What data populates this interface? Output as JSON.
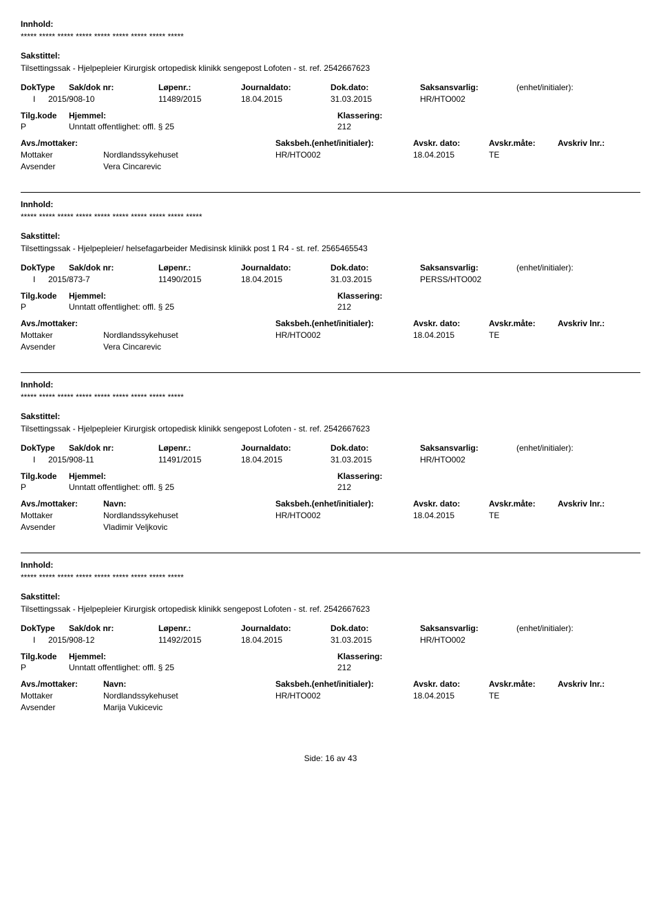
{
  "labels": {
    "innhold": "Innhold:",
    "sakstittel": "Sakstittel:",
    "doktype": "DokType",
    "sakdok": "Sak/dok nr:",
    "lopenr": "Løpenr.:",
    "journaldato": "Journaldato:",
    "dokdato": "Dok.dato:",
    "saksansvarlig": "Saksansvarlig:",
    "enhet": "(enhet/initialer):",
    "tilgkode": "Tilg.kode",
    "hjemmel": "Hjemmel:",
    "klassering": "Klassering:",
    "avsmottaker": "Avs./mottaker:",
    "navn": "Navn:",
    "saksbeh": "Saksbeh.(enhet/initialer):",
    "avskrdato": "Avskr. dato:",
    "avskrmate": "Avskr.måte:",
    "avskrlnr": "Avskriv lnr.:",
    "mottaker": "Mottaker",
    "avsender": "Avsender",
    "side": "Side:",
    "av": "av"
  },
  "common": {
    "hjemmel_text": "Unntatt offentlighet: offl. § 25",
    "klassering_value": "212",
    "tilgkode_value": "P",
    "doktype_value": "I",
    "mottaker_navn": "Nordlandssykehuset",
    "saksbeh_value": "HR/HTO002",
    "avskr_mate": "TE",
    "avskr_dato": "18.04.2015",
    "journaldato": "18.04.2015",
    "dokdato": "31.03.2015"
  },
  "records": [
    {
      "stars": "***** ***** ***** ***** ***** ***** ***** ***** *****",
      "sakstittel": "Tilsettingssak - Hjelpepleier Kirurgisk ortopedisk klinikk sengepost Lofoten - st. ref. 2542667623",
      "sakdok": "2015/908-10",
      "lopenr": "11489/2015",
      "saksansvarlig": "HR/HTO002",
      "avsender": "Vera Cincarevic",
      "show_avs_hdr_navn": false
    },
    {
      "stars": "***** ***** ***** ***** ***** ***** ***** ***** ***** *****",
      "sakstittel": "Tilsettingssak - Hjelpepleier/ helsefagarbeider Medisinsk klinikk post 1 R4 - st. ref. 2565465543",
      "sakdok": "2015/873-7",
      "lopenr": "11490/2015",
      "saksansvarlig": "PERSS/HTO002",
      "avsender": "Vera Cincarevic",
      "show_avs_hdr_navn": false
    },
    {
      "stars": "***** ***** ***** ***** ***** ***** ***** ***** *****",
      "sakstittel": "Tilsettingssak - Hjelpepleier Kirurgisk ortopedisk klinikk sengepost Lofoten - st. ref. 2542667623",
      "sakdok": "2015/908-11",
      "lopenr": "11491/2015",
      "saksansvarlig": "HR/HTO002",
      "avsender": "Vladimir Veljkovic",
      "show_avs_hdr_navn": true
    },
    {
      "stars": "***** ***** ***** ***** ***** ***** ***** ***** *****",
      "sakstittel": "Tilsettingssak - Hjelpepleier Kirurgisk ortopedisk klinikk sengepost Lofoten - st. ref. 2542667623",
      "sakdok": "2015/908-12",
      "lopenr": "11492/2015",
      "saksansvarlig": "HR/HTO002",
      "avsender": "Marija Vukicevic",
      "show_avs_hdr_navn": true
    }
  ],
  "footer": {
    "page": "16",
    "total": "43"
  }
}
